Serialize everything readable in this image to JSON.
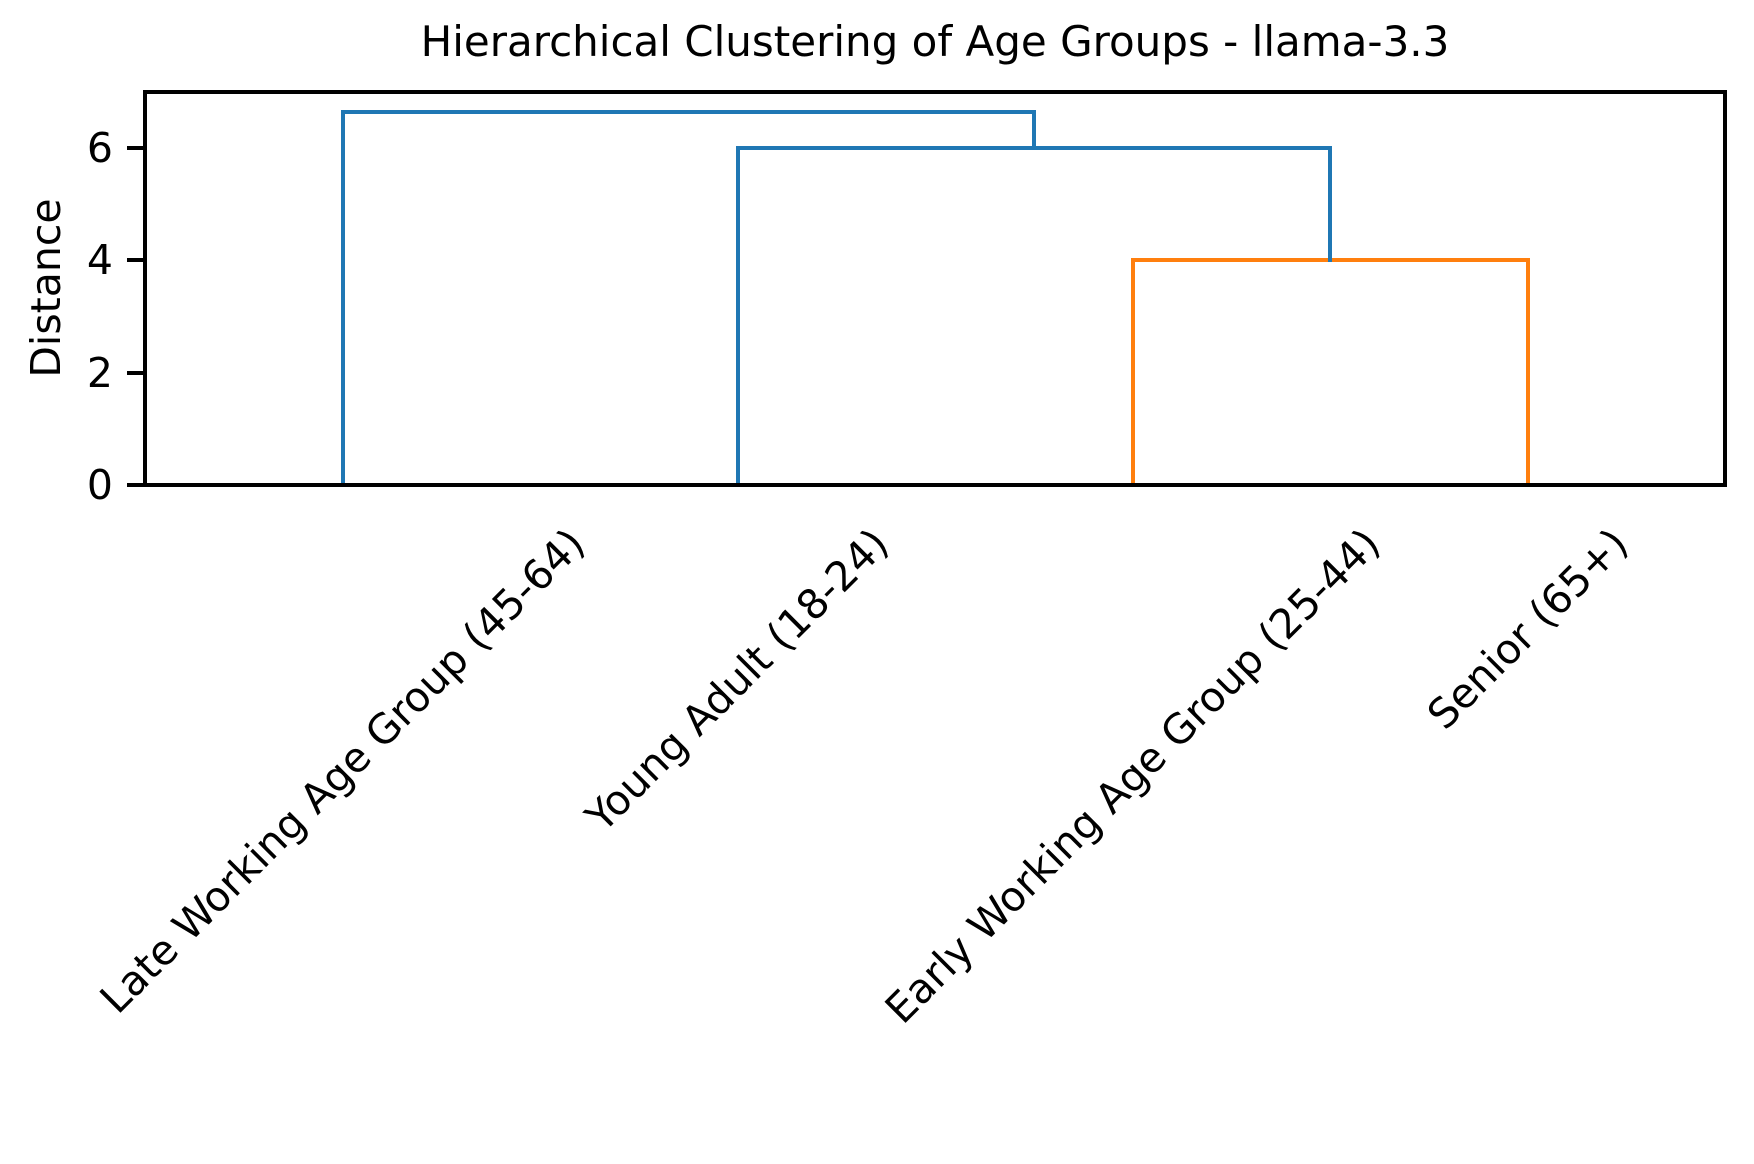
{
  "chart_data": {
    "type": "dendrogram",
    "title": "Hierarchical Clustering of Age Groups - llama-3.3",
    "ylabel": "Distance",
    "yticks": [
      0,
      2,
      4,
      6
    ],
    "ylim": [
      0,
      7
    ],
    "grid": false,
    "legend": null,
    "leaves": [
      "Late Working Age Group (45-64)",
      "Young Adult (18-24)",
      "Early Working Age Group (25-44)",
      "Senior (65+)"
    ],
    "links": [
      {
        "left": {
          "type": "leaf",
          "index": 2
        },
        "right": {
          "type": "leaf",
          "index": 3
        },
        "distance": 4.0,
        "color": "#ff7f0e"
      },
      {
        "left": {
          "type": "leaf",
          "index": 1
        },
        "right": {
          "type": "link",
          "index": 0
        },
        "distance": 6.0,
        "color": "#1f77b4"
      },
      {
        "left": {
          "type": "leaf",
          "index": 0
        },
        "right": {
          "type": "link",
          "index": 1
        },
        "distance": 6.65,
        "color": "#1f77b4"
      }
    ],
    "colors": {
      "above_threshold_link": "#1f77b4",
      "cluster_link": "#ff7f0e",
      "axis": "#000000",
      "background": "#ffffff",
      "text": "#000000"
    }
  }
}
